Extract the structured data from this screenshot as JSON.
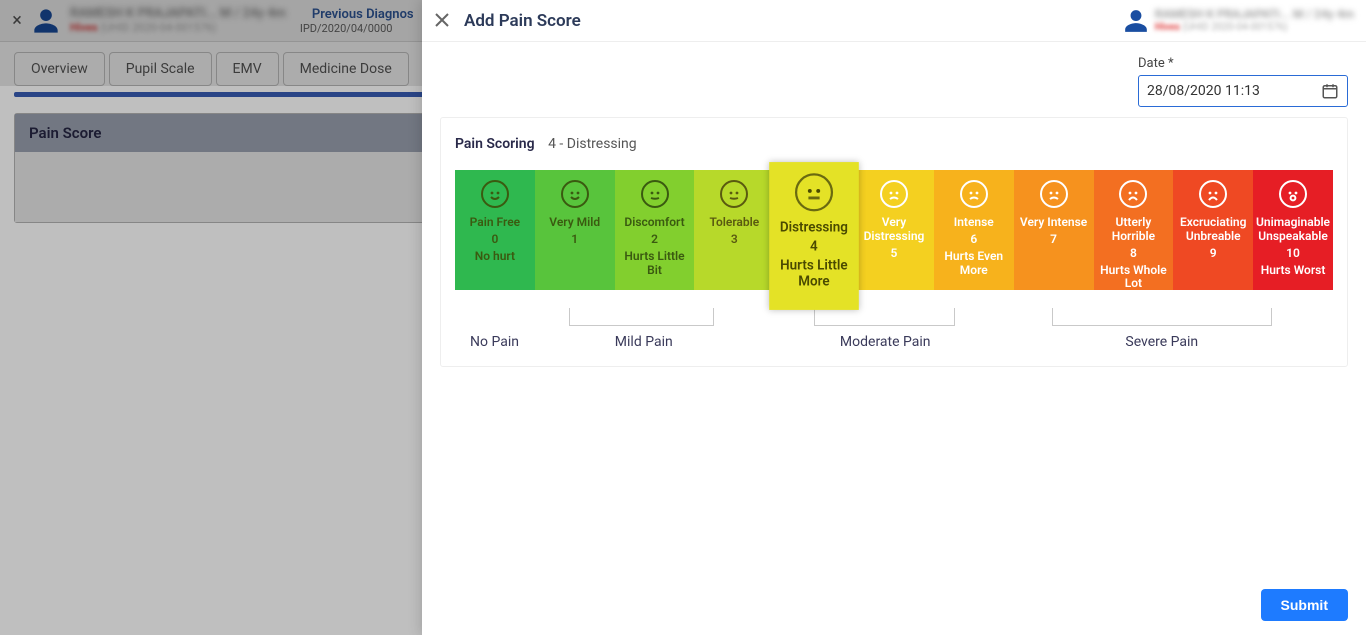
{
  "background": {
    "close_icon": "×",
    "patient_name_masked": "RAMESH K PRAJAPATI... M / 24y 4m",
    "patient_tag": "Hives",
    "patient_code_masked": "(UHID 2020-04-001576)",
    "prev_diag_label": "Previous Diagnos",
    "prev_diag_sub": "IPD/2020/04/0000",
    "tabs": [
      "Overview",
      "Pupil Scale",
      "EMV",
      "Medicine Dose"
    ],
    "panel_title": "Pain Score"
  },
  "dialog": {
    "title": "Add Pain Score",
    "patient_name_masked": "RAMESH K PRAJAPATI... M / 24y 4m",
    "patient_tag": "Hives",
    "patient_code_masked": "(UHID 2020-04-001576)",
    "date_label": "Date *",
    "date_value": "28/08/2020 11:13",
    "scoring_label": "Pain Scoring",
    "scoring_value": "4 - Distressing",
    "selected_score": 4,
    "submit_label": "Submit",
    "range_labels": {
      "no_pain": "No Pain",
      "mild_pain": "Mild Pain",
      "moderate_pain": "Moderate Pain",
      "severe_pain": "Severe Pain"
    },
    "brackets": [
      {
        "left_pct": 13.0,
        "width_pct": 16.5
      },
      {
        "left_pct": 40.9,
        "width_pct": 16.0
      },
      {
        "left_pct": 68.0,
        "width_pct": 25.0
      }
    ],
    "range_positions": {
      "no_pain_pct": 4.5,
      "mild_pct": 21.5,
      "moderate_pct": 49.0,
      "severe_pct": 80.5
    },
    "scale": [
      {
        "score": 0,
        "title": "Pain Free",
        "sub": "No hurt",
        "color": "#2fb84f",
        "text_mode": "dark"
      },
      {
        "score": 1,
        "title": "Very Mild",
        "sub": "",
        "color": "#58c43c",
        "text_mode": "dark"
      },
      {
        "score": 2,
        "title": "Discomfort",
        "sub": "Hurts Little Bit",
        "color": "#82cf2e",
        "text_mode": "dark"
      },
      {
        "score": 3,
        "title": "Tolerable",
        "sub": "",
        "color": "#b7d92a",
        "text_mode": "olive"
      },
      {
        "score": 4,
        "title": "Distressing",
        "sub": "Hurts Little More",
        "color": "#e4e226",
        "text_mode": "med"
      },
      {
        "score": 5,
        "title": "Very Distressing",
        "sub": "",
        "color": "#f4d020",
        "text_mode": "white"
      },
      {
        "score": 6,
        "title": "Intense",
        "sub": "Hurts Even More",
        "color": "#f7b21c",
        "text_mode": "white"
      },
      {
        "score": 7,
        "title": "Very Intense",
        "sub": "",
        "color": "#f6921e",
        "text_mode": "white"
      },
      {
        "score": 8,
        "title": "Utterly Horrible",
        "sub": "Hurts Whole Lot",
        "color": "#f36f21",
        "text_mode": "white"
      },
      {
        "score": 9,
        "title": "Excruciating Unbreable",
        "sub": "",
        "color": "#ef4923",
        "text_mode": "white"
      },
      {
        "score": 10,
        "title": "Unimaginable Unspeakable",
        "sub": "Hurts Worst",
        "color": "#e61e25",
        "text_mode": "white"
      }
    ]
  }
}
